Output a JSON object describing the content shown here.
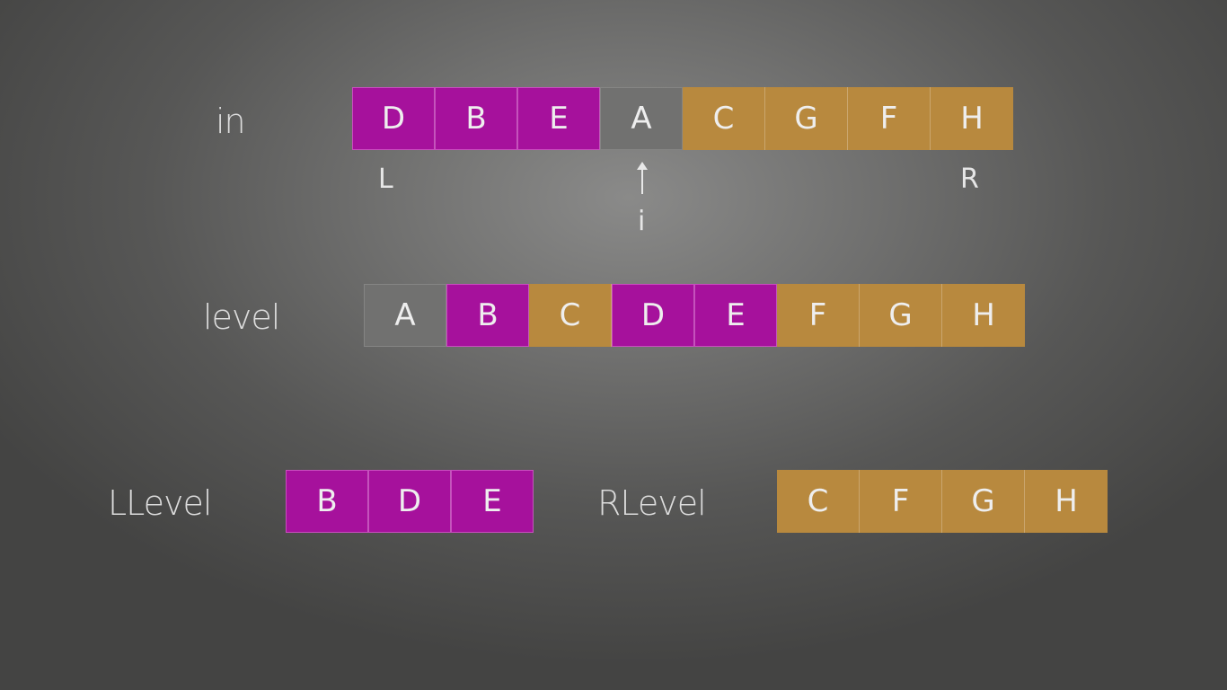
{
  "rows": {
    "in": {
      "label": "in",
      "cells": [
        {
          "letter": "D",
          "color": "magenta"
        },
        {
          "letter": "B",
          "color": "magenta"
        },
        {
          "letter": "E",
          "color": "magenta"
        },
        {
          "letter": "A",
          "color": "gray"
        },
        {
          "letter": "C",
          "color": "tan"
        },
        {
          "letter": "G",
          "color": "tan"
        },
        {
          "letter": "F",
          "color": "tan"
        },
        {
          "letter": "H",
          "color": "tan"
        }
      ],
      "markers": {
        "left": "L",
        "right": "R",
        "index": "i"
      }
    },
    "level": {
      "label": "level",
      "cells": [
        {
          "letter": "A",
          "color": "gray"
        },
        {
          "letter": "B",
          "color": "magenta"
        },
        {
          "letter": "C",
          "color": "tan"
        },
        {
          "letter": "D",
          "color": "magenta"
        },
        {
          "letter": "E",
          "color": "magenta"
        },
        {
          "letter": "F",
          "color": "tan"
        },
        {
          "letter": "G",
          "color": "tan"
        },
        {
          "letter": "H",
          "color": "tan"
        }
      ]
    },
    "llevel": {
      "label": "LLevel",
      "cells": [
        {
          "letter": "B",
          "color": "magenta"
        },
        {
          "letter": "D",
          "color": "magenta"
        },
        {
          "letter": "E",
          "color": "magenta"
        }
      ]
    },
    "rlevel": {
      "label": "RLevel",
      "cells": [
        {
          "letter": "C",
          "color": "tan"
        },
        {
          "letter": "F",
          "color": "tan"
        },
        {
          "letter": "G",
          "color": "tan"
        },
        {
          "letter": "H",
          "color": "tan"
        }
      ]
    }
  },
  "colors": {
    "magenta": "#a6119c",
    "tan": "#b8893e",
    "gray": "#717170",
    "background": "#5e5e5d"
  },
  "icons": {
    "pointer": "up-arrow-icon"
  }
}
